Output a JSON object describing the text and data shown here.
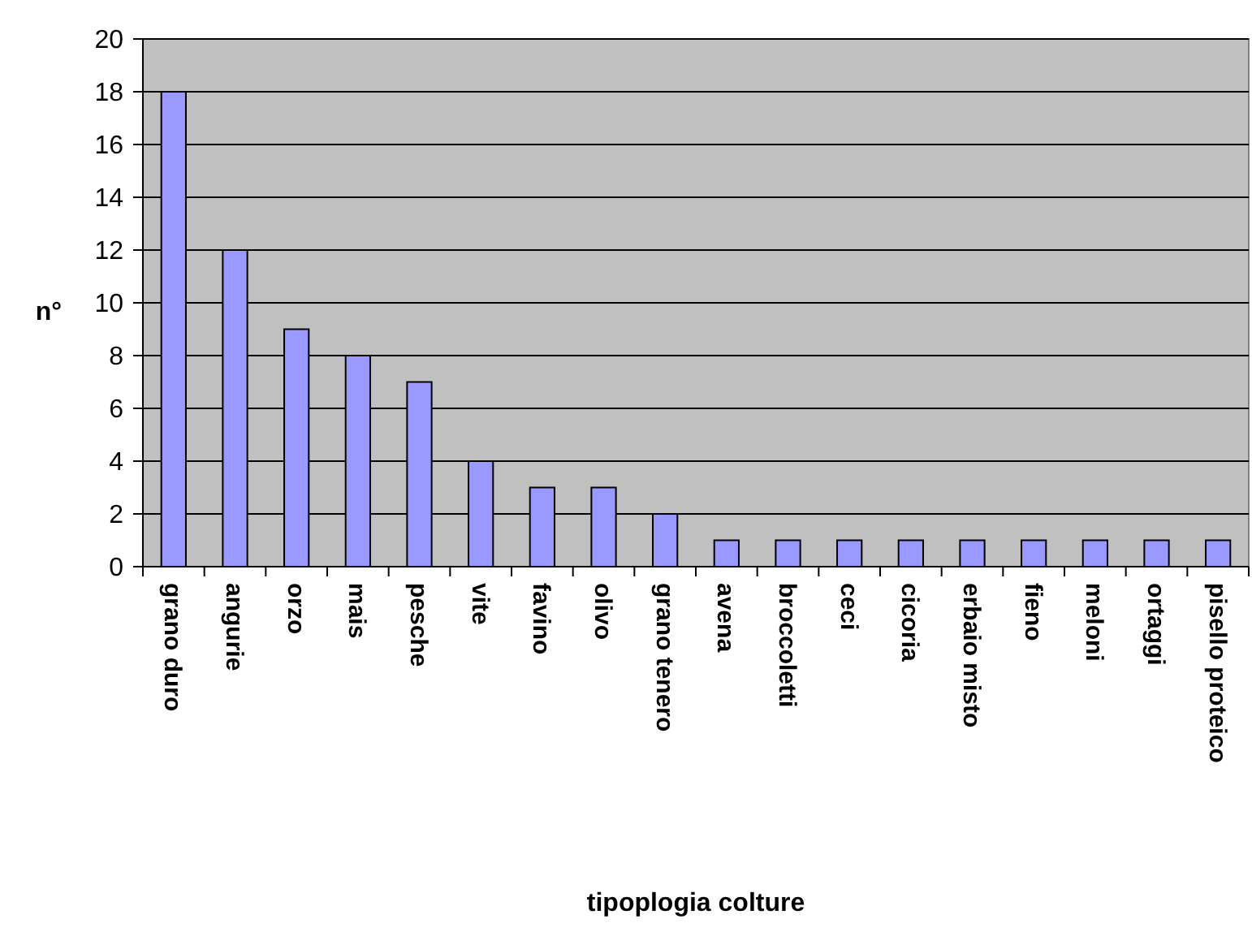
{
  "chart_data": {
    "type": "bar",
    "xlabel": "tipoplogia colture",
    "ylabel": "n°",
    "categories": [
      "grano duro",
      "angurie",
      "orzo",
      "mais",
      "pesche",
      "vite",
      "favino",
      "olivo",
      "grano tenero",
      "avena",
      "broccoletti",
      "ceci",
      "cicoria",
      "erbaio misto",
      "fieno",
      "meloni",
      "ortaggi",
      "pisello proteico"
    ],
    "values": [
      18,
      12,
      9,
      8,
      7,
      4,
      3,
      3,
      2,
      1,
      1,
      1,
      1,
      1,
      1,
      1,
      1,
      1
    ],
    "color": "#9999ff",
    "ylim": [
      0,
      20
    ],
    "yticks": [
      0,
      2,
      4,
      6,
      8,
      10,
      12,
      14,
      16,
      18,
      20
    ],
    "grid": "y"
  }
}
